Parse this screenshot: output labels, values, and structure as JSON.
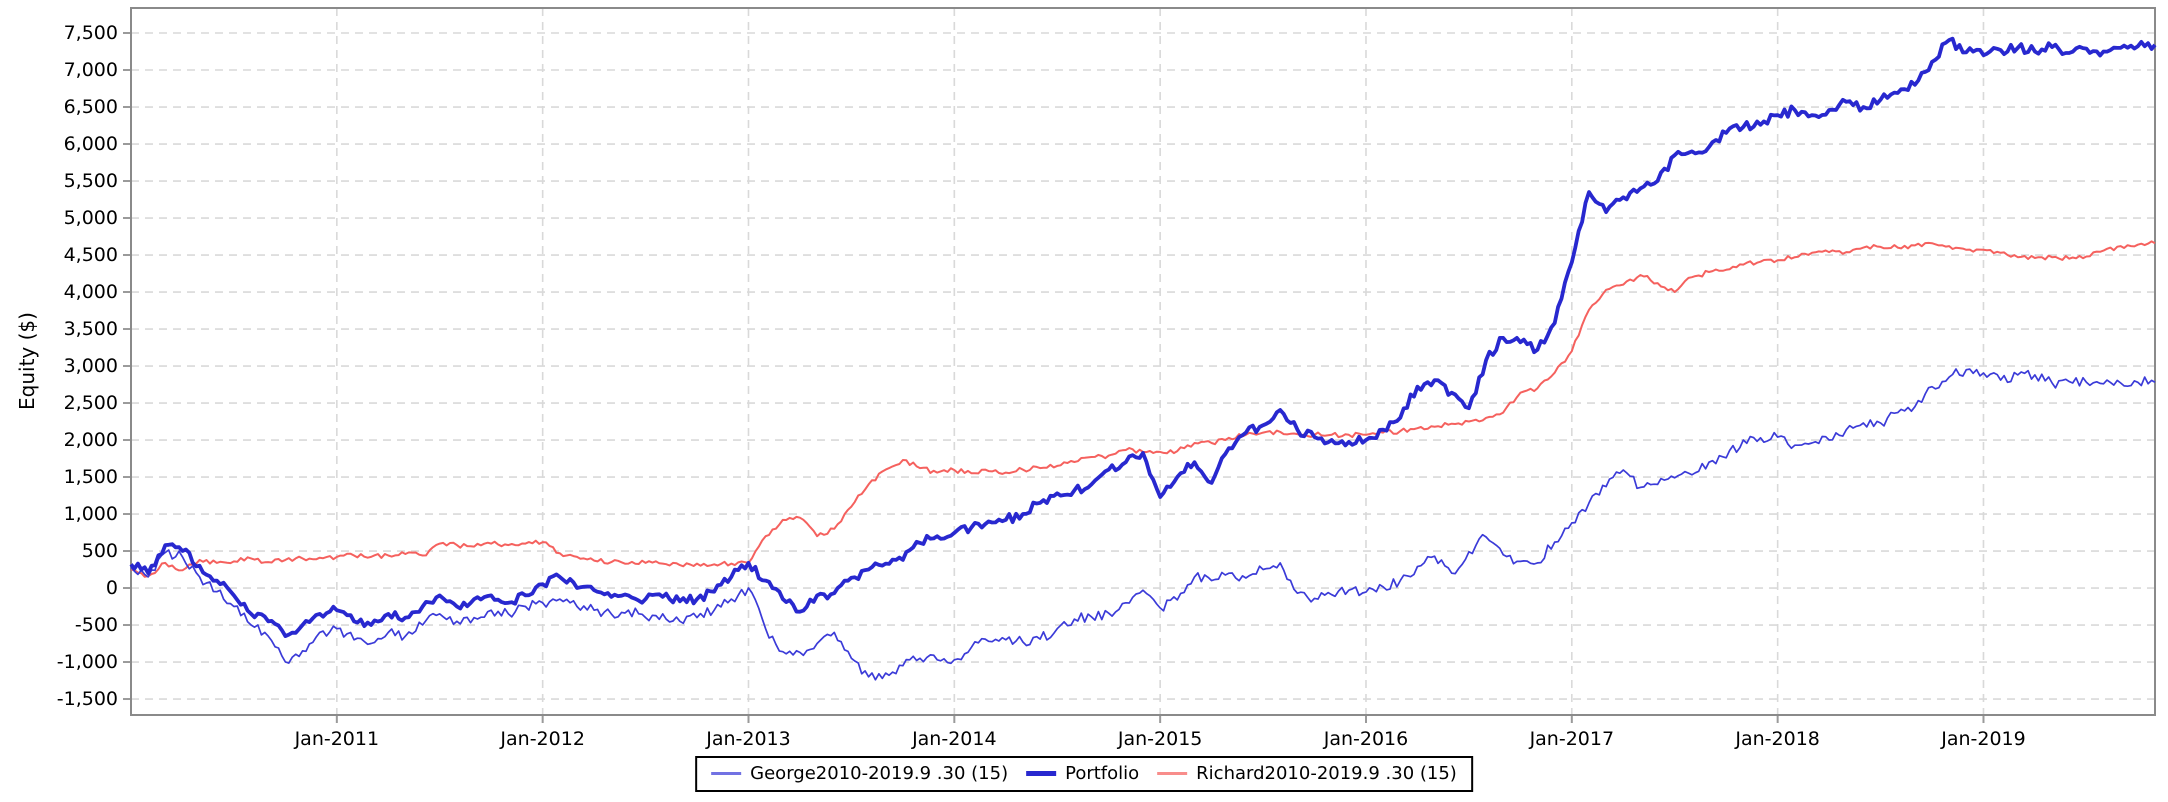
{
  "chart_data": {
    "type": "line",
    "title": "",
    "ylabel": "Equity ($)",
    "grid": "dashed",
    "legend_position": "bottom-center",
    "x_axis": {
      "start": 2010.0,
      "end": 2019.8333,
      "step_years": 0.0833,
      "ticks": [
        {
          "label": "Jan-2011",
          "t": 2011
        },
        {
          "label": "Jan-2012",
          "t": 2012
        },
        {
          "label": "Jan-2013",
          "t": 2013
        },
        {
          "label": "Jan-2014",
          "t": 2014
        },
        {
          "label": "Jan-2015",
          "t": 2015
        },
        {
          "label": "Jan-2016",
          "t": 2016
        },
        {
          "label": "Jan-2017",
          "t": 2017
        },
        {
          "label": "Jan-2018",
          "t": 2018
        },
        {
          "label": "Jan-2019",
          "t": 2019
        }
      ]
    },
    "y_axis": {
      "min": -1716,
      "max": 7838,
      "tick_min": -1500,
      "tick_max": 7500,
      "tick_step": 500
    },
    "series": [
      {
        "name": "George2010-2019.9 .30 (15)",
        "color": "#3b3bd8",
        "width": 1.7,
        "noise": 70,
        "values": [
          280,
          150,
          480,
          420,
          150,
          -50,
          -250,
          -500,
          -650,
          -1000,
          -850,
          -600,
          -550,
          -700,
          -750,
          -600,
          -650,
          -500,
          -350,
          -450,
          -400,
          -300,
          -350,
          -250,
          -200,
          -150,
          -250,
          -300,
          -350,
          -300,
          -400,
          -350,
          -450,
          -400,
          -300,
          -150,
          0,
          -550,
          -860,
          -870,
          -750,
          -600,
          -950,
          -1200,
          -1150,
          -1050,
          -950,
          -970,
          -970,
          -800,
          -720,
          -700,
          -730,
          -690,
          -550,
          -420,
          -390,
          -340,
          -200,
          -30,
          -270,
          -160,
          150,
          100,
          200,
          135,
          250,
          340,
          -70,
          -140,
          -90,
          -30,
          -55,
          15,
          100,
          290,
          430,
          200,
          490,
          690,
          450,
          360,
          340,
          620,
          880,
          1150,
          1370,
          1595,
          1360,
          1400,
          1490,
          1530,
          1700,
          1760,
          2000,
          2030,
          2040,
          1930,
          1960,
          2000,
          2140,
          2230,
          2230,
          2370,
          2450,
          2720,
          2850,
          2950,
          2905,
          2810,
          2880,
          2880,
          2770,
          2790,
          2780,
          2760,
          2770,
          2780,
          2780
        ]
      },
      {
        "name": "Portfolio",
        "color": "#2828cf",
        "width": 3.8,
        "noise": 65,
        "values": [
          320,
          200,
          580,
          500,
          300,
          100,
          -100,
          -350,
          -450,
          -650,
          -500,
          -350,
          -300,
          -450,
          -500,
          -350,
          -400,
          -250,
          -100,
          -250,
          -150,
          -100,
          -200,
          -100,
          50,
          150,
          0,
          -30,
          -120,
          -100,
          -150,
          -120,
          -180,
          -150,
          -50,
          150,
          340,
          100,
          -150,
          -320,
          -100,
          -70,
          140,
          250,
          330,
          380,
          610,
          700,
          745,
          820,
          900,
          920,
          1000,
          1150,
          1280,
          1320,
          1400,
          1600,
          1700,
          1824,
          1230,
          1500,
          1700,
          1420,
          1890,
          2100,
          2200,
          2405,
          2140,
          2040,
          2000,
          1975,
          2000,
          2140,
          2300,
          2720,
          2810,
          2640,
          2430,
          3080,
          3380,
          3320,
          3220,
          3580,
          4400,
          5350,
          5080,
          5280,
          5400,
          5500,
          5850,
          5900,
          5960,
          6150,
          6230,
          6260,
          6390,
          6460,
          6390,
          6460,
          6570,
          6500,
          6600,
          6690,
          6800,
          7110,
          7405,
          7240,
          7200,
          7270,
          7300,
          7250,
          7310,
          7230,
          7290,
          7250,
          7300,
          7320,
          7340
        ]
      },
      {
        "name": "Richard2010-2019.9 .30 (15)",
        "color": "#f5615e",
        "width": 2.0,
        "noise": 32,
        "values": [
          250,
          160,
          340,
          240,
          380,
          340,
          360,
          400,
          350,
          380,
          400,
          410,
          420,
          440,
          420,
          440,
          460,
          440,
          600,
          580,
          560,
          600,
          580,
          600,
          620,
          470,
          420,
          370,
          350,
          330,
          340,
          330,
          310,
          330,
          320,
          330,
          340,
          700,
          920,
          950,
          700,
          800,
          1100,
          1400,
          1600,
          1730,
          1620,
          1560,
          1595,
          1550,
          1580,
          1560,
          1600,
          1620,
          1650,
          1703,
          1770,
          1790,
          1865,
          1840,
          1840,
          1850,
          1960,
          1960,
          2030,
          2070,
          2100,
          2110,
          2080,
          2070,
          2070,
          2070,
          2070,
          2100,
          2120,
          2160,
          2180,
          2220,
          2250,
          2300,
          2370,
          2640,
          2700,
          2910,
          3200,
          3760,
          4030,
          4100,
          4230,
          4120,
          4000,
          4200,
          4270,
          4300,
          4370,
          4410,
          4430,
          4470,
          4530,
          4540,
          4540,
          4600,
          4610,
          4600,
          4630,
          4660,
          4620,
          4570,
          4570,
          4530,
          4470,
          4460,
          4470,
          4450,
          4480,
          4560,
          4620,
          4640,
          4660
        ]
      }
    ],
    "colors": {
      "plot_border": "#8a8a8a",
      "gridline": "#d9d9d9",
      "tick": "#9a9a9a",
      "text": "#000000",
      "background": "#ffffff"
    }
  }
}
